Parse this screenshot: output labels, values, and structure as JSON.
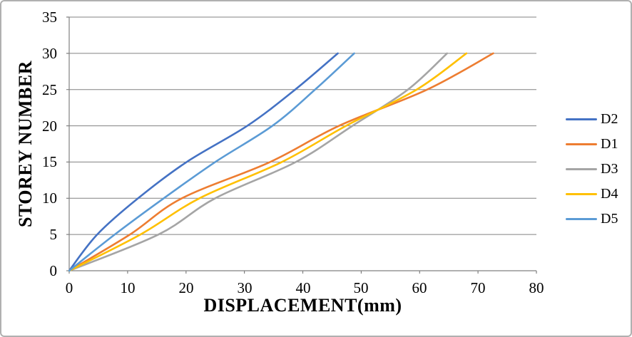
{
  "chart_data": {
    "type": "line",
    "title": "",
    "xlabel": "DISPLACEMENT(mm)",
    "ylabel": "STOREY NUMBER",
    "xlim": [
      0,
      80
    ],
    "ylim": [
      0,
      35
    ],
    "x_ticks": [
      0,
      10,
      20,
      30,
      40,
      50,
      60,
      70,
      80
    ],
    "y_ticks": [
      0,
      5,
      10,
      15,
      20,
      25,
      30,
      35
    ],
    "grid": "horizontal-only",
    "legend_position": "right",
    "storeys": [
      0,
      5,
      10,
      15,
      20,
      25,
      30
    ],
    "series": [
      {
        "name": "D2",
        "color": "#4472C4",
        "displacement_mm": [
          0,
          4.8,
          11.8,
          20.1,
          30.5,
          38.7,
          46.0
        ]
      },
      {
        "name": "D1",
        "color": "#ED7D31",
        "displacement_mm": [
          0,
          10.4,
          19.3,
          34.4,
          46.2,
          61.3,
          72.6
        ]
      },
      {
        "name": "D3",
        "color": "#A5A5A5",
        "displacement_mm": [
          0,
          15.3,
          25.0,
          38.8,
          48.5,
          58.0,
          64.7
        ]
      },
      {
        "name": "D4",
        "color": "#FFC000",
        "displacement_mm": [
          0,
          12.2,
          22.3,
          36.4,
          47.4,
          59.5,
          68.0
        ]
      },
      {
        "name": "D5",
        "color": "#5B9BD5",
        "displacement_mm": [
          0,
          7.8,
          16.2,
          25.0,
          34.8,
          42.1,
          48.8
        ]
      }
    ],
    "axis_color": "#808080",
    "gridline_color": "#808080"
  }
}
